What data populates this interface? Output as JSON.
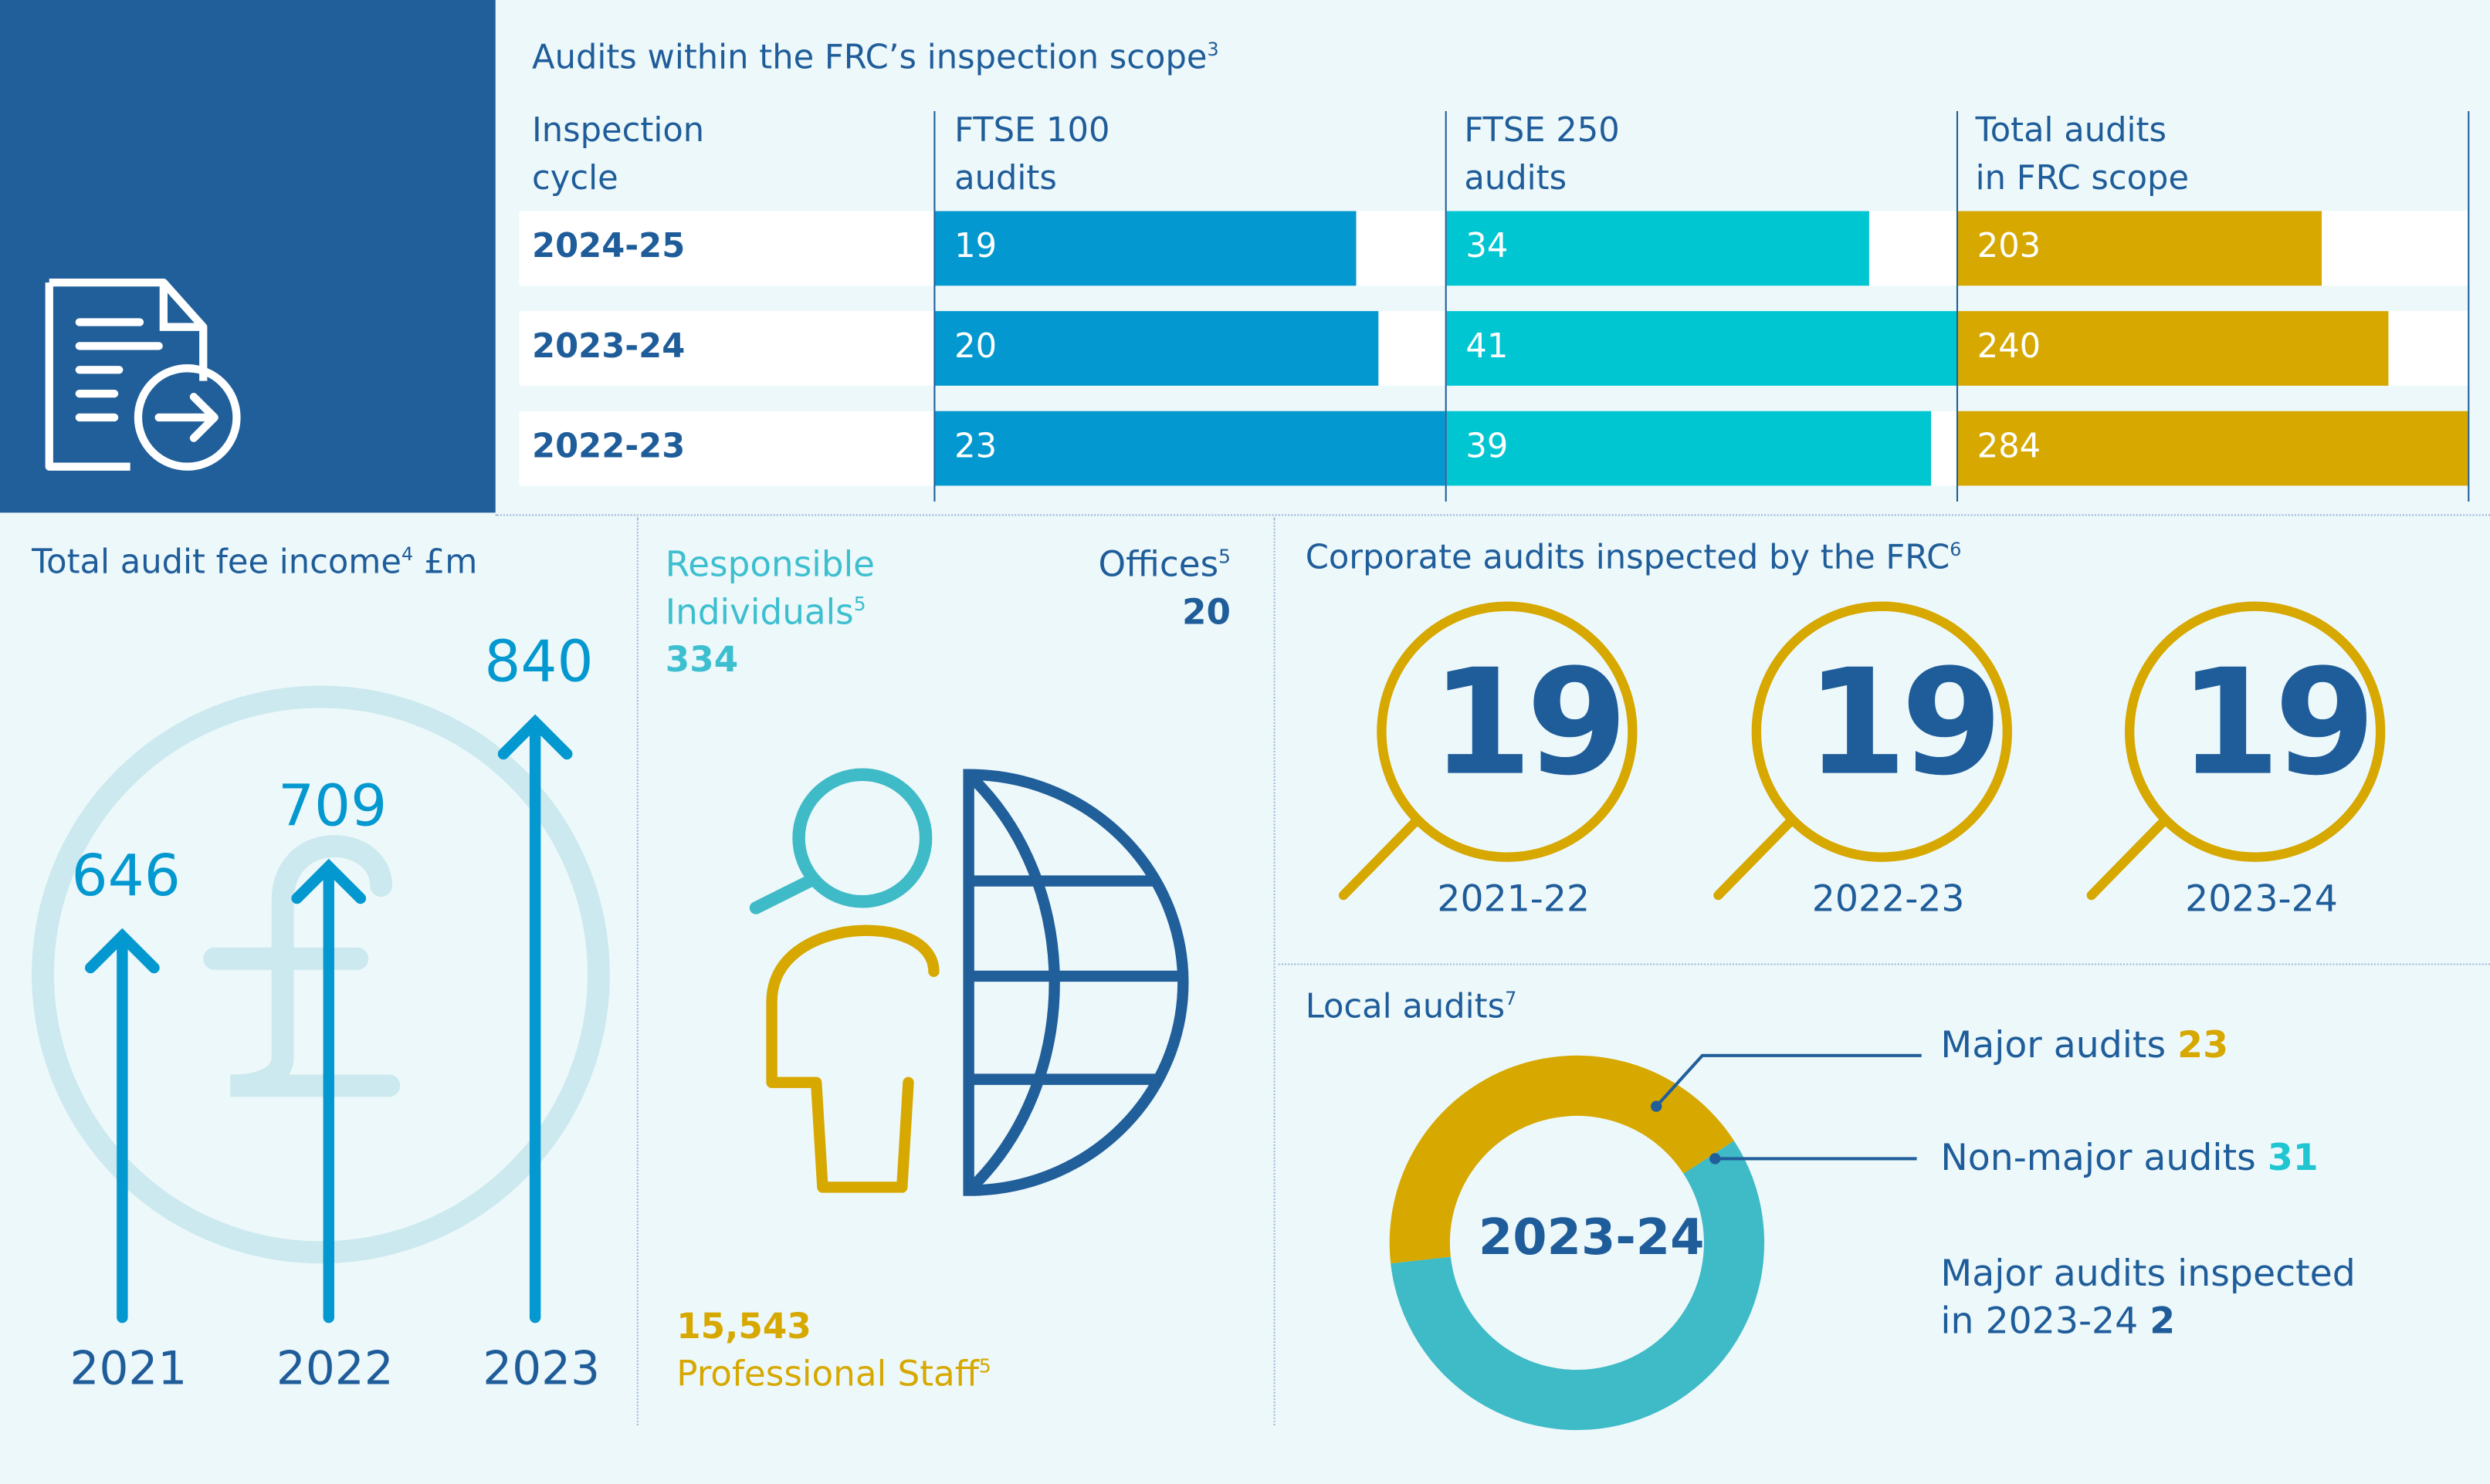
{
  "colors": {
    "navy": "#215f9a",
    "text": "#1f5d9a",
    "ftse100": "#0398cf",
    "ftse250": "#00c6d2",
    "total": "#d6a800",
    "teal": "#3fbac7",
    "yellow": "#d6a800"
  },
  "scope": {
    "title": "Audits within the FRC’s inspection scope",
    "title_sup": "3",
    "headers": [
      [
        "Inspection",
        "cycle"
      ],
      [
        "FTSE 100",
        "audits"
      ],
      [
        "FTSE 250",
        "audits"
      ],
      [
        "Total audits",
        "in FRC scope"
      ]
    ],
    "rows": [
      {
        "cycle": "2024-25",
        "ftse100": 19,
        "ftse250": 34,
        "total": 203
      },
      {
        "cycle": "2023-24",
        "ftse100": 20,
        "ftse250": 41,
        "total": 240
      },
      {
        "cycle": "2022-23",
        "ftse100": 23,
        "ftse250": 39,
        "total": 284
      }
    ],
    "icon": "document-arrow-icon"
  },
  "fees": {
    "title": "Total audit fee income",
    "title_sup": "4",
    "unit": " £m",
    "items": [
      {
        "year": "2021",
        "value": "646"
      },
      {
        "year": "2022",
        "value": "709"
      },
      {
        "year": "2023",
        "value": "840"
      }
    ],
    "background_icon": "pound-icon"
  },
  "people": {
    "ri_label1": "Responsible",
    "ri_label2": "Individuals",
    "ri_sup": "5",
    "ri_value": "334",
    "offices_label": "Offices",
    "offices_sup": "5",
    "offices_value": "20",
    "staff_value": "15,543",
    "staff_label": "Professional Staff",
    "staff_sup": "5"
  },
  "corporate": {
    "title": "Corporate audits inspected by the FRC",
    "title_sup": "6",
    "items": [
      {
        "value": "19",
        "cycle": "2021-22"
      },
      {
        "value": "19",
        "cycle": "2022-23"
      },
      {
        "value": "19",
        "cycle": "2023-24"
      }
    ]
  },
  "local": {
    "title": "Local audits",
    "title_sup": "7",
    "center": "2023-24",
    "major_label": "Major audits ",
    "major_value": 23,
    "nonmajor_label": "Non-major audits ",
    "nonmajor_value": 31,
    "inspected_line1": "Major audits inspected",
    "inspected_line2": "in 2023-24 ",
    "inspected_value": "2"
  }
}
